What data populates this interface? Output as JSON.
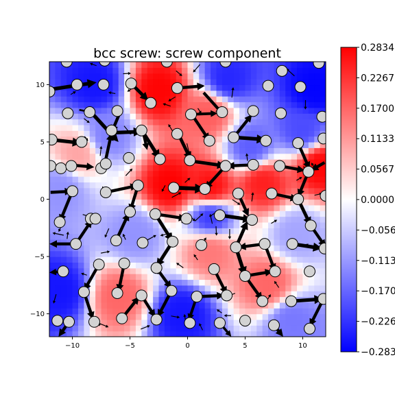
{
  "chart_data": {
    "type": "vector-field",
    "title": "bcc screw: screw component",
    "xlim": [
      -12,
      12
    ],
    "ylim": [
      -12,
      12
    ],
    "x_ticks": [
      -10,
      -5,
      0,
      5,
      10
    ],
    "y_ticks": [
      -10,
      -5,
      0,
      5,
      10
    ],
    "x_tick_labels": [
      "−10",
      "−5",
      "0",
      "5",
      "10"
    ],
    "y_tick_labels": [
      "−10",
      "−5",
      "0",
      "5",
      "10"
    ],
    "grid": false,
    "colormap": "bwr",
    "colorbar": {
      "range": [
        -0.2834,
        0.2834
      ],
      "ticks": [
        0.2834,
        0.2267,
        0.17,
        0.1133,
        0.0567,
        0.0,
        -0.0567,
        -0.1133,
        -0.17,
        -0.2267,
        -0.2834
      ],
      "tick_labels": [
        "0.2834",
        "0.2267",
        "0.1700",
        "0.1133",
        "0.0567",
        "0.0000",
        "−0.0567",
        "−0.1133",
        "−0.1700",
        "−0.2267",
        "−0.2834"
      ]
    },
    "field_points": [
      {
        "x": -1.5,
        "y": 1.2,
        "value": 0.283
      },
      {
        "x": 2.0,
        "y": 1.0,
        "value": 0.27
      },
      {
        "x": 6.5,
        "y": 1.5,
        "value": 0.25
      },
      {
        "x": -2.5,
        "y": 9.5,
        "value": 0.28
      },
      {
        "x": 11.5,
        "y": 3.0,
        "value": 0.28
      },
      {
        "x": 1.8,
        "y": 7.5,
        "value": 0.18
      },
      {
        "x": 2.0,
        "y": -4.5,
        "value": 0.15
      },
      {
        "x": 7.0,
        "y": -7.5,
        "value": 0.17
      },
      {
        "x": -6.0,
        "y": -8.5,
        "value": 0.17
      },
      {
        "x": -9.5,
        "y": 4.0,
        "value": 0.1
      },
      {
        "x": 9.5,
        "y": -3.0,
        "value": -0.1
      },
      {
        "x": -8.0,
        "y": 10.0,
        "value": -0.26
      },
      {
        "x": 3.5,
        "y": 10.5,
        "value": -0.24
      },
      {
        "x": 11.0,
        "y": 9.5,
        "value": -0.28
      },
      {
        "x": 2.0,
        "y": -1.5,
        "value": -0.22
      },
      {
        "x": 5.5,
        "y": 4.5,
        "value": -0.18
      },
      {
        "x": -11.0,
        "y": -8.0,
        "value": -0.26
      },
      {
        "x": -0.5,
        "y": -10.0,
        "value": -0.26
      },
      {
        "x": -7.0,
        "y": 5.5,
        "value": -0.14
      },
      {
        "x": -4.5,
        "y": -3.0,
        "value": -0.12
      },
      {
        "x": 10.0,
        "y": 6.0,
        "value": -0.2
      },
      {
        "x": 9.0,
        "y": -10.5,
        "value": -0.15
      },
      {
        "x": -11.0,
        "y": 1.0,
        "value": -0.12
      }
    ],
    "atoms": [
      [
        -10.5,
        12.0
      ],
      [
        -7.2,
        12.1
      ],
      [
        -1.8,
        12.0
      ],
      [
        3.3,
        12.0
      ],
      [
        11.4,
        11.9
      ],
      [
        -9.6,
        10.0
      ],
      [
        -7.3,
        10.0
      ],
      [
        -4.9,
        10.1
      ],
      [
        -0.9,
        9.7
      ],
      [
        7.0,
        9.9
      ],
      [
        8.2,
        11.2
      ],
      [
        9.8,
        9.8
      ],
      [
        -12.0,
        9.4
      ],
      [
        -10.4,
        7.5
      ],
      [
        -6.1,
        7.7
      ],
      [
        -3.2,
        8.4
      ],
      [
        0.3,
        7.4
      ],
      [
        3.0,
        7.6
      ],
      [
        5.7,
        7.7
      ],
      [
        8.1,
        7.5
      ],
      [
        11.7,
        7.2
      ],
      [
        -8.5,
        7.6
      ],
      [
        -6.6,
        6.0
      ],
      [
        -4.0,
        6.0
      ],
      [
        -0.9,
        5.7
      ],
      [
        1.9,
        5.1
      ],
      [
        4.0,
        5.4
      ],
      [
        6.8,
        5.1
      ],
      [
        9.6,
        4.9
      ],
      [
        11.8,
        5.3
      ],
      [
        -11.8,
        5.2
      ],
      [
        -9.2,
        5.0
      ],
      [
        -5.1,
        3.6
      ],
      [
        -2.4,
        3.5
      ],
      [
        0.2,
        3.4
      ],
      [
        3.3,
        2.9
      ],
      [
        5.7,
        3.0
      ],
      [
        8.0,
        2.9
      ],
      [
        10.5,
        2.4
      ],
      [
        -11.9,
        2.9
      ],
      [
        -11.0,
        2.7
      ],
      [
        -10.1,
        2.9
      ],
      [
        -7.5,
        2.7
      ],
      [
        -7.1,
        3.1
      ],
      [
        -10.0,
        0.7
      ],
      [
        -7.1,
        0.6
      ],
      [
        -4.3,
        1.2
      ],
      [
        -1.2,
        1.0
      ],
      [
        1.5,
        0.9
      ],
      [
        4.4,
        0.5
      ],
      [
        7.3,
        0.5
      ],
      [
        9.6,
        0.0
      ],
      [
        12.0,
        0.3
      ],
      [
        -11.1,
        -2.0
      ],
      [
        -8.4,
        -1.7
      ],
      [
        -8.0,
        -1.7
      ],
      [
        -5.0,
        -1.1
      ],
      [
        -2.8,
        -1.3
      ],
      [
        -0.1,
        -1.7
      ],
      [
        2.8,
        -1.4
      ],
      [
        5.6,
        -1.8
      ],
      [
        10.7,
        -2.3
      ],
      [
        -9.7,
        -3.9
      ],
      [
        -6.2,
        -3.6
      ],
      [
        -3.9,
        -3.8
      ],
      [
        -1.3,
        -3.7
      ],
      [
        1.2,
        -4.0
      ],
      [
        4.2,
        -4.2
      ],
      [
        6.7,
        -3.9
      ],
      [
        9.1,
        -3.9
      ],
      [
        11.9,
        -4.3
      ],
      [
        -10.8,
        -6.3
      ],
      [
        -7.7,
        -5.7
      ],
      [
        -5.5,
        -5.6
      ],
      [
        -2.7,
        -6.0
      ],
      [
        2.3,
        -6.1
      ],
      [
        5.0,
        -6.7
      ],
      [
        7.6,
        -6.3
      ],
      [
        10.6,
        -6.3
      ],
      [
        -9.0,
        -8.1
      ],
      [
        -6.1,
        -8.2
      ],
      [
        -4.0,
        -8.4
      ],
      [
        -1.4,
        -8.0
      ],
      [
        0.8,
        -8.5
      ],
      [
        3.4,
        -8.4
      ],
      [
        6.5,
        -8.9
      ],
      [
        9.0,
        -8.9
      ],
      [
        11.8,
        -8.7
      ],
      [
        -11.3,
        -10.6
      ],
      [
        -10.3,
        -10.7
      ],
      [
        -8.1,
        -10.7
      ],
      [
        -5.7,
        -10.4
      ],
      [
        -2.7,
        -10.5
      ],
      [
        0.2,
        -10.8
      ],
      [
        2.8,
        -10.8
      ],
      [
        5.0,
        -10.6
      ],
      [
        7.5,
        -11.0
      ],
      [
        10.6,
        -11.3
      ]
    ],
    "vectors": [
      [
        -11.8,
        9.6,
        -7.9,
        10.2,
        1.2
      ],
      [
        -9.4,
        7.8,
        -8.4,
        7.6,
        0.6
      ],
      [
        -8.3,
        7.5,
        -6.0,
        5.0,
        1.2
      ],
      [
        -5.9,
        7.5,
        -6.6,
        5.8,
        1.0
      ],
      [
        -6.6,
        5.8,
        -3.9,
        5.9,
        1.2
      ],
      [
        -3.9,
        5.9,
        -2.4,
        3.5,
        1.2
      ],
      [
        -3.9,
        6.0,
        -3.5,
        4.3,
        0.9
      ],
      [
        -4.9,
        10.1,
        -3.4,
        8.6,
        1.1
      ],
      [
        -0.9,
        9.7,
        1.5,
        9.9,
        1.0
      ],
      [
        0.3,
        7.4,
        2.6,
        7.5,
        0.9
      ],
      [
        1.4,
        9.3,
        3.1,
        7.4,
        1.0
      ],
      [
        0.3,
        7.5,
        1.9,
        5.1,
        1.0
      ],
      [
        -0.8,
        5.7,
        0.3,
        3.4,
        1.1
      ],
      [
        -11.9,
        5.2,
        -9.2,
        4.9,
        1.2
      ],
      [
        -10.3,
        3.0,
        -8.1,
        2.8,
        1.0
      ],
      [
        -7.2,
        3.0,
        -6.6,
        5.8,
        1.0
      ],
      [
        4.0,
        5.4,
        6.8,
        5.2,
        1.2
      ],
      [
        4.0,
        5.4,
        5.6,
        7.4,
        1.0
      ],
      [
        0.5,
        3.3,
        3.3,
        2.9,
        1.1
      ],
      [
        5.7,
        3.0,
        3.4,
        2.9,
        1.0
      ],
      [
        3.3,
        2.9,
        1.5,
        0.9,
        1.0
      ],
      [
        -1.2,
        1.0,
        1.5,
        0.9,
        1.3
      ],
      [
        -0.2,
        0.9,
        1.3,
        0.9,
        0.8
      ],
      [
        -4.3,
        1.2,
        -5.0,
        -1.1,
        1.0
      ],
      [
        -7.1,
        0.6,
        -4.3,
        1.2,
        1.0
      ],
      [
        -11.9,
        0.6,
        -10.0,
        0.7,
        1.0
      ],
      [
        -10.0,
        0.7,
        -11.1,
        -2.0,
        1.0
      ],
      [
        -2.8,
        -1.3,
        -1.3,
        -3.7,
        1.1
      ],
      [
        -2.8,
        -1.3,
        -0.1,
        -1.7,
        1.0
      ],
      [
        2.8,
        -1.4,
        5.6,
        -1.8,
        1.2
      ],
      [
        4.4,
        0.5,
        5.3,
        -1.5,
        1.0
      ],
      [
        7.3,
        0.5,
        9.6,
        0.0,
        1.0
      ],
      [
        9.6,
        0.0,
        10.7,
        -2.3,
        1.1
      ],
      [
        10.5,
        2.4,
        9.6,
        0.2,
        1.0
      ],
      [
        11.9,
        3.2,
        10.7,
        2.5,
        1.0
      ],
      [
        8.0,
        2.9,
        10.2,
        2.5,
        1.0
      ],
      [
        10.7,
        -2.3,
        12.0,
        -4.2,
        1.0
      ],
      [
        9.1,
        -3.9,
        11.7,
        -4.3,
        1.2
      ],
      [
        6.7,
        -3.9,
        7.6,
        -6.3,
        1.0
      ],
      [
        6.7,
        -3.9,
        4.4,
        -4.2,
        1.0
      ],
      [
        4.2,
        -4.2,
        5.0,
        -6.7,
        1.2
      ],
      [
        4.2,
        -4.2,
        5.2,
        -1.9,
        1.1
      ],
      [
        5.0,
        -6.7,
        7.4,
        -6.3,
        1.0
      ],
      [
        5.0,
        -6.7,
        6.5,
        -8.8,
        1.0
      ],
      [
        2.3,
        -6.1,
        3.4,
        -8.3,
        1.0
      ],
      [
        0.8,
        -8.5,
        3.2,
        -8.4,
        1.0
      ],
      [
        -1.3,
        -3.7,
        -2.7,
        -5.9,
        1.1
      ],
      [
        -2.7,
        -6.0,
        -1.4,
        -7.8,
        1.0
      ],
      [
        -1.4,
        -8.0,
        -2.6,
        -10.3,
        1.0
      ],
      [
        -4.0,
        -8.4,
        -2.8,
        -10.3,
        1.0
      ],
      [
        -5.7,
        -10.4,
        -4.2,
        -8.5,
        1.0
      ],
      [
        -5.5,
        -5.6,
        -6.0,
        -8.1,
        1.0
      ],
      [
        -6.2,
        -3.6,
        -5.1,
        -1.2,
        1.0
      ],
      [
        -9.7,
        -3.9,
        -8.3,
        -1.8,
        1.0
      ],
      [
        -9.7,
        -3.9,
        -12.0,
        -3.9,
        1.0
      ],
      [
        -7.7,
        -5.7,
        -9.0,
        -8.0,
        1.0
      ],
      [
        -9.0,
        -8.1,
        -8.2,
        -10.5,
        1.0
      ],
      [
        -10.3,
        -10.7,
        -11.2,
        -12.0,
        1.0
      ],
      [
        -10.8,
        -6.3,
        -12.0,
        -6.4,
        0.9
      ],
      [
        9.0,
        -8.9,
        11.8,
        -8.7,
        1.2
      ],
      [
        11.8,
        -8.7,
        10.6,
        -11.1,
        1.0
      ],
      [
        7.5,
        -11.0,
        8.3,
        -12.0,
        1.0
      ],
      [
        9.6,
        4.9,
        10.6,
        2.6,
        1.0
      ],
      [
        0.8,
        -8.5,
        0.1,
        -10.6,
        0.9
      ],
      [
        2.8,
        -10.8,
        3.8,
        -12.0,
        0.8
      ]
    ]
  }
}
